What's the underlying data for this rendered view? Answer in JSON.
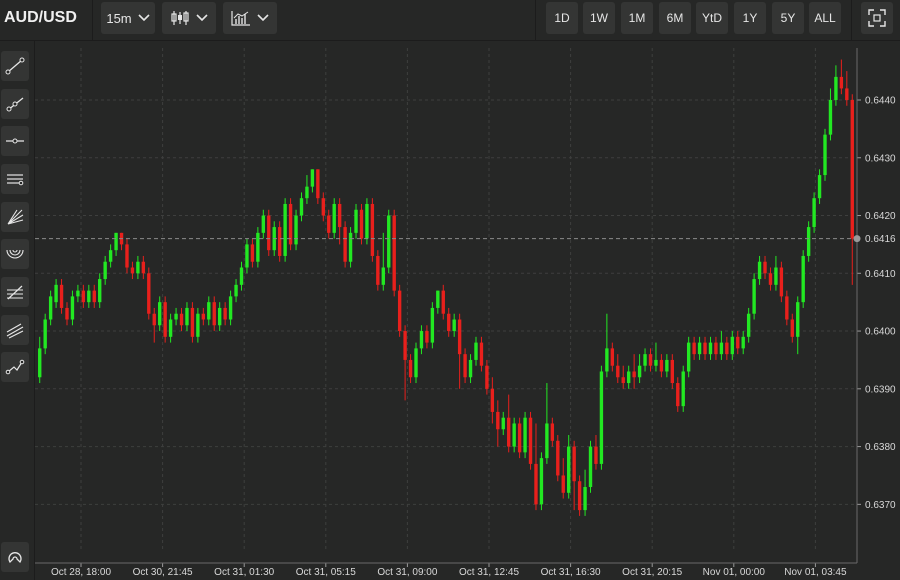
{
  "header": {
    "symbol": "AUD/USD",
    "interval": "15m",
    "chart_type_icon": "candlestick-icon",
    "indicators_icon": "indicators-icon",
    "ranges": [
      "1D",
      "1W",
      "1M",
      "6M",
      "YtD",
      "1Y",
      "5Y",
      "ALL"
    ],
    "fullscreen_icon": "fullscreen-icon"
  },
  "sidebar": {
    "tools": [
      "trend-line-icon",
      "ray-icon",
      "horizontal-line-icon",
      "parallel-channel-icon",
      "fan-icon",
      "arc-icon",
      "fibonacci-icon",
      "pitchfork-icon",
      "path-icon"
    ],
    "magnet_icon": "magnet-icon"
  },
  "colors": {
    "up": "#22e822",
    "down": "#e8201c",
    "background": "#262726",
    "grid": "#3e3f3e"
  },
  "chart_data": {
    "type": "candlestick",
    "x_ticks": [
      "Oct 28, 18:00",
      "Oct 30, 21:45",
      "Oct 31, 01:30",
      "Oct 31, 05:15",
      "Oct 31, 09:00",
      "Oct 31, 12:45",
      "Oct 31, 16:30",
      "Oct 31, 20:15",
      "Nov 01, 00:00",
      "Nov 01, 03:45"
    ],
    "y_ticks": [
      "0.6370",
      "0.6380",
      "0.6390",
      "0.6400",
      "0.6410",
      "0.6420",
      "0.6430",
      "0.6440"
    ],
    "ylim": [
      0.6364,
      0.6449
    ],
    "current_price": "0.6416",
    "candles": [
      [
        0.6392,
        0.6397,
        0.6391,
        0.6399
      ],
      [
        0.6397,
        0.6402,
        0.6396,
        0.6403
      ],
      [
        0.6402,
        0.6406,
        0.6401,
        0.6407
      ],
      [
        0.6405,
        0.6408,
        0.6404,
        0.6409
      ],
      [
        0.6408,
        0.6404,
        0.6403,
        0.6409
      ],
      [
        0.6404,
        0.6402,
        0.6401,
        0.6405
      ],
      [
        0.6402,
        0.6406,
        0.6401,
        0.6407
      ],
      [
        0.6406,
        0.6407,
        0.6405,
        0.6408
      ],
      [
        0.6407,
        0.6405,
        0.6404,
        0.6408
      ],
      [
        0.6405,
        0.6407,
        0.6404,
        0.6408
      ],
      [
        0.6407,
        0.6405,
        0.6404,
        0.6408
      ],
      [
        0.6405,
        0.6409,
        0.6404,
        0.641
      ],
      [
        0.6409,
        0.6412,
        0.6408,
        0.6413
      ],
      [
        0.6412,
        0.6414,
        0.6411,
        0.6415
      ],
      [
        0.6414,
        0.6417,
        0.6413,
        0.6417
      ],
      [
        0.6417,
        0.6415,
        0.6414,
        0.6417
      ],
      [
        0.6415,
        0.6411,
        0.641,
        0.6416
      ],
      [
        0.6411,
        0.641,
        0.6409,
        0.6412
      ],
      [
        0.641,
        0.6412,
        0.6409,
        0.6413
      ],
      [
        0.6412,
        0.641,
        0.6409,
        0.6413
      ],
      [
        0.641,
        0.6403,
        0.6402,
        0.6411
      ],
      [
        0.6403,
        0.6401,
        0.6398,
        0.6404
      ],
      [
        0.6401,
        0.6405,
        0.64,
        0.6406
      ],
      [
        0.6405,
        0.6399,
        0.6398,
        0.6406
      ],
      [
        0.6399,
        0.6402,
        0.6398,
        0.6403
      ],
      [
        0.6402,
        0.6403,
        0.6401,
        0.6404
      ],
      [
        0.6403,
        0.6401,
        0.64,
        0.6404
      ],
      [
        0.6401,
        0.6404,
        0.64,
        0.6405
      ],
      [
        0.6404,
        0.6399,
        0.6398,
        0.6405
      ],
      [
        0.6399,
        0.6403,
        0.6398,
        0.6404
      ],
      [
        0.6403,
        0.6402,
        0.6401,
        0.6404
      ],
      [
        0.6402,
        0.6405,
        0.6401,
        0.6406
      ],
      [
        0.6405,
        0.6401,
        0.64,
        0.6406
      ],
      [
        0.6401,
        0.6404,
        0.64,
        0.6405
      ],
      [
        0.6404,
        0.6402,
        0.6401,
        0.6405
      ],
      [
        0.6402,
        0.6406,
        0.6401,
        0.6407
      ],
      [
        0.6406,
        0.6408,
        0.6405,
        0.6409
      ],
      [
        0.6408,
        0.6411,
        0.6407,
        0.6412
      ],
      [
        0.6411,
        0.6415,
        0.641,
        0.6416
      ],
      [
        0.6415,
        0.6412,
        0.6411,
        0.6416
      ],
      [
        0.6412,
        0.6417,
        0.6411,
        0.6418
      ],
      [
        0.6417,
        0.642,
        0.6416,
        0.6421
      ],
      [
        0.642,
        0.6414,
        0.6413,
        0.6421
      ],
      [
        0.6414,
        0.6418,
        0.6413,
        0.6419
      ],
      [
        0.6418,
        0.6413,
        0.6412,
        0.6419
      ],
      [
        0.6413,
        0.6422,
        0.6412,
        0.6423
      ],
      [
        0.6422,
        0.6415,
        0.6414,
        0.6423
      ],
      [
        0.6415,
        0.642,
        0.6414,
        0.6421
      ],
      [
        0.642,
        0.6423,
        0.6419,
        0.6424
      ],
      [
        0.6423,
        0.6425,
        0.6422,
        0.6427
      ],
      [
        0.6425,
        0.6428,
        0.6424,
        0.6428
      ],
      [
        0.6428,
        0.6423,
        0.6422,
        0.6428
      ],
      [
        0.6423,
        0.642,
        0.6419,
        0.6424
      ],
      [
        0.642,
        0.6417,
        0.6416,
        0.6421
      ],
      [
        0.6417,
        0.6422,
        0.6416,
        0.6423
      ],
      [
        0.6422,
        0.6418,
        0.6415,
        0.6423
      ],
      [
        0.6418,
        0.6412,
        0.6411,
        0.6419
      ],
      [
        0.6412,
        0.6417,
        0.6411,
        0.6418
      ],
      [
        0.6417,
        0.6421,
        0.6416,
        0.6422
      ],
      [
        0.6421,
        0.6416,
        0.6415,
        0.6422
      ],
      [
        0.6416,
        0.6422,
        0.6415,
        0.6423
      ],
      [
        0.6422,
        0.6413,
        0.6412,
        0.6423
      ],
      [
        0.6413,
        0.6408,
        0.6407,
        0.6414
      ],
      [
        0.6408,
        0.6411,
        0.6407,
        0.6417
      ],
      [
        0.6411,
        0.642,
        0.641,
        0.6421
      ],
      [
        0.642,
        0.6407,
        0.6406,
        0.6421
      ],
      [
        0.6407,
        0.64,
        0.6399,
        0.6408
      ],
      [
        0.64,
        0.6395,
        0.6388,
        0.6401
      ],
      [
        0.6395,
        0.6392,
        0.6391,
        0.6396
      ],
      [
        0.6392,
        0.6397,
        0.6391,
        0.6398
      ],
      [
        0.6397,
        0.64,
        0.6396,
        0.6401
      ],
      [
        0.64,
        0.6398,
        0.6397,
        0.6401
      ],
      [
        0.6398,
        0.6404,
        0.6397,
        0.6405
      ],
      [
        0.6404,
        0.6407,
        0.6403,
        0.6407
      ],
      [
        0.6407,
        0.6403,
        0.6402,
        0.6408
      ],
      [
        0.6403,
        0.64,
        0.6399,
        0.6404
      ],
      [
        0.64,
        0.6402,
        0.6399,
        0.6403
      ],
      [
        0.6402,
        0.6396,
        0.639,
        0.6403
      ],
      [
        0.6396,
        0.6392,
        0.6391,
        0.6397
      ],
      [
        0.6392,
        0.6395,
        0.6391,
        0.6396
      ],
      [
        0.6395,
        0.6398,
        0.6394,
        0.6399
      ],
      [
        0.6398,
        0.6394,
        0.6393,
        0.6399
      ],
      [
        0.6394,
        0.639,
        0.6389,
        0.6395
      ],
      [
        0.639,
        0.6386,
        0.6384,
        0.6392
      ],
      [
        0.6386,
        0.6383,
        0.638,
        0.6388
      ],
      [
        0.6383,
        0.6385,
        0.6382,
        0.6386
      ],
      [
        0.6385,
        0.638,
        0.6379,
        0.6389
      ],
      [
        0.638,
        0.6384,
        0.6379,
        0.6385
      ],
      [
        0.6384,
        0.6379,
        0.6378,
        0.6385
      ],
      [
        0.6379,
        0.6385,
        0.6378,
        0.6386
      ],
      [
        0.6385,
        0.6377,
        0.6376,
        0.6386
      ],
      [
        0.6377,
        0.637,
        0.6369,
        0.6384
      ],
      [
        0.637,
        0.6378,
        0.6369,
        0.6379
      ],
      [
        0.6378,
        0.6384,
        0.6377,
        0.6391
      ],
      [
        0.6384,
        0.6381,
        0.638,
        0.6385
      ],
      [
        0.6381,
        0.6375,
        0.6374,
        0.6382
      ],
      [
        0.6375,
        0.6372,
        0.6371,
        0.6378
      ],
      [
        0.6372,
        0.638,
        0.6371,
        0.6382
      ],
      [
        0.638,
        0.6374,
        0.6369,
        0.6381
      ],
      [
        0.6374,
        0.6369,
        0.6368,
        0.6375
      ],
      [
        0.6369,
        0.6373,
        0.6368,
        0.6376
      ],
      [
        0.6373,
        0.638,
        0.6372,
        0.6381
      ],
      [
        0.638,
        0.6377,
        0.6376,
        0.6382
      ],
      [
        0.6377,
        0.6393,
        0.6376,
        0.6394
      ],
      [
        0.6393,
        0.6397,
        0.6392,
        0.6403
      ],
      [
        0.6397,
        0.6394,
        0.6393,
        0.6398
      ],
      [
        0.6394,
        0.6392,
        0.6391,
        0.6396
      ],
      [
        0.6392,
        0.6391,
        0.639,
        0.6394
      ],
      [
        0.6391,
        0.6393,
        0.639,
        0.6394
      ],
      [
        0.6393,
        0.6392,
        0.639,
        0.6396
      ],
      [
        0.6392,
        0.6394,
        0.6391,
        0.6396
      ],
      [
        0.6394,
        0.6396,
        0.6393,
        0.6397
      ],
      [
        0.6396,
        0.6394,
        0.6393,
        0.6397
      ],
      [
        0.6394,
        0.6395,
        0.6393,
        0.6398
      ],
      [
        0.6395,
        0.6393,
        0.6392,
        0.6396
      ],
      [
        0.6393,
        0.6395,
        0.6392,
        0.6396
      ],
      [
        0.6395,
        0.6391,
        0.639,
        0.6396
      ],
      [
        0.6391,
        0.6387,
        0.6386,
        0.6392
      ],
      [
        0.6387,
        0.6393,
        0.6386,
        0.6394
      ],
      [
        0.6393,
        0.6398,
        0.6392,
        0.6399
      ],
      [
        0.6398,
        0.6396,
        0.6395,
        0.6399
      ],
      [
        0.6396,
        0.6398,
        0.6395,
        0.6399
      ],
      [
        0.6398,
        0.6396,
        0.6395,
        0.6399
      ],
      [
        0.6396,
        0.6398,
        0.6395,
        0.6399
      ],
      [
        0.6398,
        0.6396,
        0.6395,
        0.6399
      ],
      [
        0.6396,
        0.6398,
        0.6395,
        0.64
      ],
      [
        0.6398,
        0.6396,
        0.6395,
        0.6399
      ],
      [
        0.6396,
        0.6399,
        0.6395,
        0.64
      ],
      [
        0.6399,
        0.6397,
        0.6396,
        0.64
      ],
      [
        0.6397,
        0.6399,
        0.6396,
        0.64
      ],
      [
        0.6399,
        0.6403,
        0.6398,
        0.6404
      ],
      [
        0.6403,
        0.6409,
        0.6402,
        0.641
      ],
      [
        0.6409,
        0.6412,
        0.6408,
        0.6413
      ],
      [
        0.6412,
        0.641,
        0.6409,
        0.6413
      ],
      [
        0.641,
        0.6408,
        0.6407,
        0.6411
      ],
      [
        0.6408,
        0.6411,
        0.6407,
        0.6413
      ],
      [
        0.6411,
        0.6406,
        0.6405,
        0.6412
      ],
      [
        0.6406,
        0.6402,
        0.6401,
        0.6407
      ],
      [
        0.6402,
        0.6399,
        0.6398,
        0.6403
      ],
      [
        0.6399,
        0.6405,
        0.6396,
        0.6406
      ],
      [
        0.6405,
        0.6413,
        0.6404,
        0.6414
      ],
      [
        0.6413,
        0.6418,
        0.6412,
        0.6419
      ],
      [
        0.6418,
        0.6423,
        0.6417,
        0.6424
      ],
      [
        0.6423,
        0.6427,
        0.6422,
        0.6428
      ],
      [
        0.6427,
        0.6434,
        0.6426,
        0.6435
      ],
      [
        0.6434,
        0.644,
        0.6433,
        0.6442
      ],
      [
        0.644,
        0.6444,
        0.6439,
        0.6446
      ],
      [
        0.6444,
        0.6442,
        0.6441,
        0.6447
      ],
      [
        0.6442,
        0.644,
        0.6439,
        0.6445
      ],
      [
        0.644,
        0.6416,
        0.6408,
        0.6441
      ]
    ]
  }
}
